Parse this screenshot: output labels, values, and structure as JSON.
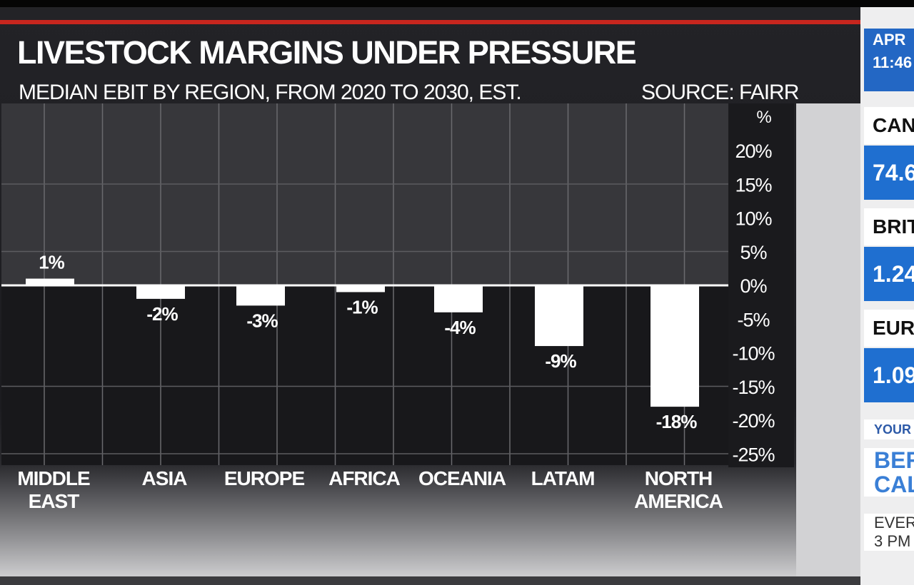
{
  "headline": "LIVESTOCK MARGINS UNDER PRESSURE",
  "subtitle": "MEDIAN EBIT BY REGION, FROM 2020 TO 2030, EST.",
  "source": "SOURCE: FAIRR",
  "colors": {
    "accent": "#c7261e",
    "bar": "#ffffff",
    "ticker_blue": "#1f6fd0"
  },
  "chart_data": {
    "type": "bar",
    "title": "LIVESTOCK MARGINS UNDER PRESSURE",
    "subtitle": "MEDIAN EBIT BY REGION, FROM 2020 TO 2030, EST.",
    "unit_label": "%",
    "categories": [
      "MIDDLE EAST",
      "ASIA",
      "EUROPE",
      "AFRICA",
      "OCEANIA",
      "LATAM",
      "NORTH AMERICA"
    ],
    "category_lines": [
      [
        "MIDDLE",
        "EAST"
      ],
      [
        "ASIA"
      ],
      [
        "EUROPE"
      ],
      [
        "AFRICA"
      ],
      [
        "OCEANIA"
      ],
      [
        "LATAM"
      ],
      [
        "NORTH",
        "AMERICA"
      ]
    ],
    "values": [
      1,
      -2,
      -3,
      -1,
      -4,
      -9,
      -18
    ],
    "value_labels": [
      "1%",
      "-2%",
      "-3%",
      "-1%",
      "-4%",
      "-9%",
      "-18%"
    ],
    "ylim": [
      -25,
      25
    ],
    "yticks": [
      20,
      15,
      10,
      5,
      0,
      -5,
      -10,
      -15,
      -20,
      -25
    ],
    "ytick_labels": [
      "20%",
      "15%",
      "10%",
      "5%",
      "0%",
      "-5%",
      "-10%",
      "-15%",
      "-20%",
      "-25%"
    ],
    "y_axis_position": "right",
    "grid": true
  },
  "ticker": {
    "date_line1": "APR",
    "date_line2": "11:46",
    "items": [
      {
        "label": "CAN",
        "value": "74.6"
      },
      {
        "label": "BRIT",
        "value": "1.24"
      },
      {
        "label": "EUR",
        "value": "1.09"
      }
    ],
    "promo_small": "YOUR I",
    "promo_title_line1": "BER",
    "promo_title_line2": "CAL",
    "promo_foot_line1": "EVER",
    "promo_foot_line2": "3 PM"
  }
}
